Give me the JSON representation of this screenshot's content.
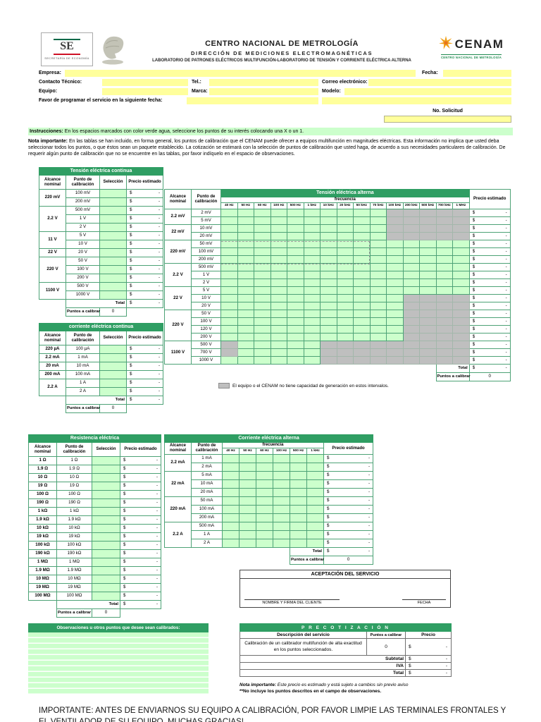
{
  "colors": {
    "header_green": "#2F9E63",
    "cell_green": "#CCFFCC",
    "field_yellow": "#FFFF9C",
    "no_capability_gray": "#BFBFBF"
  },
  "header": {
    "se_logo": "SE",
    "se_caption": "SECRETARÍA DE ECONOMÍA",
    "org_title": "CENTRO NACIONAL DE METROLOGÍA",
    "direction": "DIRECCIÓN DE MEDICIONES ELECTROMAGNÉTICAS",
    "lab": "LABORATORIO DE PATRONES ELÉCTRICOS MULTIFUNCIÓN-LABORATORIO DE TENSIÓN Y CORRIENTE ELÉCTRICA ALTERNA",
    "cenam_logo": "CENAM",
    "cenam_caption": "CENTRO NACIONAL DE METROLOGÍA"
  },
  "form": {
    "empresa_label": "Empresa:",
    "fecha_label": "Fecha:",
    "contacto_label": "Contacto Técnico:",
    "tel_label": "Tel.:",
    "correo_label": "Correo electrónico:",
    "equipo_label": "Equipo:",
    "marca_label": "Marca:",
    "modelo_label": "Modelo:",
    "programar_label": "Favor de programar el servicio en la siguiente fecha:",
    "solicitud_label": "No. Solicitud"
  },
  "instructions": {
    "lead": "Instrucciones:",
    "text": " En los espacios marcados con color verde agua, seleccione los puntos de su interés colocando una X o un 1."
  },
  "nota": {
    "lead": "Nota importante:",
    "text": " En las tablas se han incluido, en forma general, los puntos de calibración que el CENAM puede ofrecer a equipos multifunción en magnitudes eléctricas. Esta información no implica que usted deba seleccionar todos los puntos, o que éstos sean un paquete establecido. La cotización se estimará con la selección de puntos de calibración que usted haga, de acuerdo a sus necesidades particulares de calibración. De requerir algún punto de calibración que no se encuentre en las tablas, por favor indíquelo en el espacio de observaciones."
  },
  "common": {
    "currency": "$",
    "empty_value": "-",
    "total_label": "Total",
    "puntos_label": "Puntos a calibrar",
    "puntos_value": "0"
  },
  "tables": {
    "dc_voltage": {
      "title": "Tensión eléctrica  continua",
      "headers": [
        "Alcance nominal",
        "Punto de calibración",
        "Selección",
        "Precio estimado"
      ],
      "groups": [
        {
          "range": "220 mV",
          "points": [
            "100 mV",
            "200 mV"
          ]
        },
        {
          "range": "2.2 V",
          "points": [
            "500 mV",
            "1 V",
            "2 V"
          ]
        },
        {
          "range": "11 V",
          "points": [
            "5 V",
            "10 V"
          ]
        },
        {
          "range": "22 V",
          "points": [
            "20 V"
          ]
        },
        {
          "range": "220 V",
          "points": [
            "50 V",
            "100 V",
            "200 V"
          ]
        },
        {
          "range": "1100 V",
          "points": [
            "500 V",
            "1000 V"
          ]
        }
      ]
    },
    "dc_current": {
      "title": "corriente eléctrica continua",
      "headers": [
        "Alcance nominal",
        "Punto de calibración",
        "Selección",
        "Precio estimado"
      ],
      "groups": [
        {
          "range": "220 µA",
          "points": [
            "100 µA"
          ]
        },
        {
          "range": "2.2 mA",
          "points": [
            "1 mA"
          ]
        },
        {
          "range": "20 mA",
          "points": [
            "10 mA"
          ]
        },
        {
          "range": "200 mA",
          "points": [
            "100 mA"
          ]
        },
        {
          "range": "2.2 A",
          "points": [
            "1 A",
            "2 A"
          ]
        }
      ]
    },
    "resistance": {
      "title": "Resistencia eléctrica",
      "headers": [
        "Alcance nominal",
        "Punto de calibración",
        "Selección",
        "Precio estimado"
      ],
      "groups": [
        {
          "range": "1 Ω",
          "points": [
            "1 Ω"
          ]
        },
        {
          "range": "1.9 Ω",
          "points": [
            "1.9 Ω"
          ]
        },
        {
          "range": "10 Ω",
          "points": [
            "10 Ω"
          ]
        },
        {
          "range": "19 Ω",
          "points": [
            "19 Ω"
          ]
        },
        {
          "range": "100 Ω",
          "points": [
            "100 Ω"
          ]
        },
        {
          "range": "190 Ω",
          "points": [
            "190 Ω"
          ]
        },
        {
          "range": "1 kΩ",
          "points": [
            "1 kΩ"
          ]
        },
        {
          "range": "1.9 kΩ",
          "points": [
            "1.9 kΩ"
          ]
        },
        {
          "range": "10 kΩ",
          "points": [
            "10 kΩ"
          ]
        },
        {
          "range": "19 kΩ",
          "points": [
            "19 kΩ"
          ]
        },
        {
          "range": "100 kΩ",
          "points": [
            "100 kΩ"
          ]
        },
        {
          "range": "190 kΩ",
          "points": [
            "190 kΩ"
          ]
        },
        {
          "range": "1 MΩ",
          "points": [
            "1 MΩ"
          ]
        },
        {
          "range": "1.9 MΩ",
          "points": [
            "1.9 MΩ"
          ]
        },
        {
          "range": "10 MΩ",
          "points": [
            "10 MΩ"
          ]
        },
        {
          "range": "19 MΩ",
          "points": [
            "19 MΩ"
          ]
        },
        {
          "range": "100 MΩ",
          "points": [
            "100 MΩ"
          ]
        }
      ]
    },
    "ac_voltage": {
      "title": "Tensión eléctrica alterna",
      "col_headers": [
        "Alcance nominal",
        "Punto de calibración",
        "Precio estimado"
      ],
      "freq_label": "frecuencia",
      "frequencies": [
        "40 Hz",
        "50 Hz",
        "60 Hz",
        "100 Hz",
        "500 Hz",
        "1 kHz",
        "10 kHz",
        "20 kHz",
        "50 kHz",
        "70 kHz",
        "100 kHz",
        "200 kHz",
        "500 kHz",
        "700 kHz",
        "1 MHz"
      ],
      "groups": [
        {
          "range": "2.2 mV",
          "points": [
            "2 mV",
            "5 mV"
          ]
        },
        {
          "range": "22 mV",
          "points": [
            "10 mV",
            "20 mV"
          ]
        },
        {
          "range": "220 mV",
          "points": [
            "50 mV",
            "100 mV",
            "200 mV"
          ]
        },
        {
          "range": "2.2 V",
          "points": [
            "500 mV",
            "1 V",
            "2 V"
          ]
        },
        {
          "range": "22 V",
          "points": [
            "5 V",
            "10 V",
            "20 V"
          ]
        },
        {
          "range": "220 V",
          "points": [
            "50 V",
            "100 V",
            "120 V",
            "200 V"
          ]
        },
        {
          "range": "1100 V",
          "points": [
            "500 V",
            "700 V",
            "1000 V"
          ]
        }
      ],
      "disabled": {
        "2 mV": [
          [
            11,
            15
          ]
        ],
        "5 mV": [
          [
            11,
            15
          ]
        ],
        "10 mV": [
          [
            11,
            15
          ]
        ],
        "20 mV": [
          [
            11,
            15
          ]
        ],
        "10 V": [
          [
            12,
            15
          ]
        ],
        "20 V": [
          [
            12,
            15
          ]
        ],
        "50 V": [
          [
            12,
            15
          ]
        ],
        "100 V": [
          [
            12,
            15
          ]
        ],
        "120 V": [
          [
            12,
            15
          ]
        ],
        "200 V": [
          [
            12,
            15
          ]
        ],
        "500 V": [
          [
            1,
            1
          ],
          [
            7,
            15
          ]
        ],
        "700 V": [
          [
            1,
            1
          ],
          [
            7,
            15
          ]
        ],
        "1000 V": [
          [
            7,
            15
          ]
        ]
      }
    },
    "ac_current": {
      "title": "Corriente eléctrica alterna",
      "col_headers": [
        "Alcance nominal",
        "Punto de calibración",
        "Precio estimado"
      ],
      "freq_label": "frecuencia",
      "frequencies": [
        "40 Hz",
        "50 Hz",
        "60 Hz",
        "100 Hz",
        "500 Hz",
        "1 kHz"
      ],
      "groups": [
        {
          "range": "2.2 mA",
          "points": [
            "1 mA",
            "2 mA"
          ]
        },
        {
          "range": "22 mA",
          "points": [
            "5 mA",
            "10 mA",
            "20 mA"
          ]
        },
        {
          "range": "220 mA",
          "points": [
            "50 mA",
            "100 mA",
            "200 mA"
          ]
        },
        {
          "range": "2.2 A",
          "points": [
            "500 mA",
            "1 A",
            "2 A"
          ]
        }
      ],
      "disabled": {}
    }
  },
  "legend": {
    "text": "El equipo  o el CENAM no tiene capacidad de generación en estos intervalos."
  },
  "aceptacion": {
    "title": "ACEPTACIÓN DEL SERVICIO",
    "nombre_label": "NOMBRE Y FIRMA DEL CLIENTE",
    "fecha_label": "FECHA"
  },
  "observaciones": {
    "title": "Observaciones u otros puntos que desee sean calibrados:"
  },
  "precotizacion": {
    "title": "P R E C O T I Z A C I Ó N",
    "headers": [
      "Descripción del  servicio",
      "Puntos a calibrar",
      "Precio"
    ],
    "description": "Calibración de un calibrador multifunción de alta exactitud en los puntos seleccionados.",
    "puntos_value": "0",
    "subtotal_label": "Subtotal",
    "iva_label": "IVA",
    "total_label": "Total"
  },
  "notes": {
    "lead": "Nota importante:",
    "line1": " Este precio es estimado y está sujeto a cambios sin previo aviso",
    "line2": "**No incluye los puntos descritos en el campo de observaciones."
  },
  "banner": "IMPORTANTE: ANTES DE ENVIARNOS SU EQUIPO A CALIBRACIÓN, POR FAVOR LIMPIE LAS TERMINALES FRONTALES Y EL VENTILADOR DE SU EQUIPO. MUCHAS GRACIAS!"
}
